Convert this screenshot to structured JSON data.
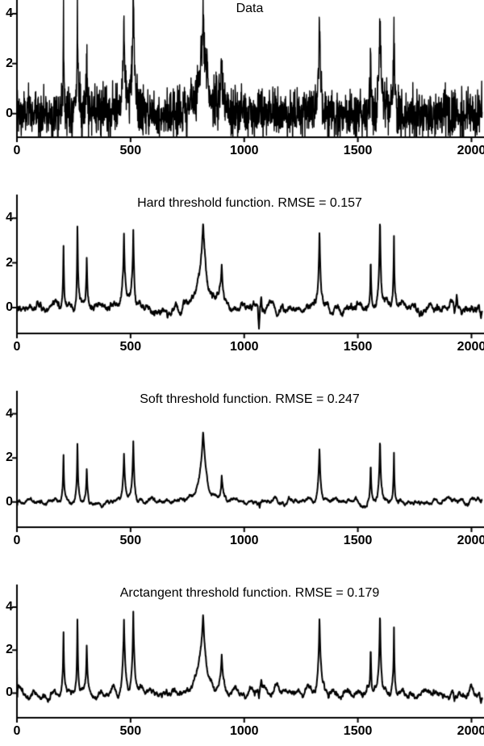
{
  "figure": {
    "background": "#ffffff",
    "line_color": "#000000"
  },
  "chart_data": {
    "type": "line",
    "description": "Four stacked plots comparing wavelet denoising threshold functions on a noisy bumps signal",
    "n_samples": 2048,
    "x_ticks": [
      0,
      500,
      1000,
      1500,
      2000
    ],
    "y_ticks": [
      0,
      2,
      4
    ],
    "grid": false,
    "legend": false,
    "signal_model": "bumps",
    "bumps": {
      "positions": [
        0.1,
        0.13,
        0.15,
        0.23,
        0.25,
        0.4,
        0.44,
        0.65,
        0.76,
        0.78,
        0.81
      ],
      "heights": [
        4,
        5,
        3,
        4,
        5,
        4.2,
        2.1,
        4.3,
        3.1,
        5.1,
        4.2
      ],
      "widths": [
        0.005,
        0.005,
        0.006,
        0.01,
        0.01,
        0.03,
        0.01,
        0.01,
        0.005,
        0.008,
        0.005
      ]
    },
    "panels": [
      {
        "title": "Data",
        "ylim": [
          -0.95,
          4.55
        ],
        "noise_sigma": 0.5,
        "residual": 0,
        "narrow_scale": 1.0,
        "broad_scale": 1.0,
        "artifacts": []
      },
      {
        "title": "Hard threshold function. RMSE = 0.157",
        "rmse": 0.157,
        "ylim": [
          -1.15,
          5.05
        ],
        "noise_sigma": 0,
        "residual": 0.17,
        "narrow_scale": 0.78,
        "broad_scale": 0.9,
        "artifacts": [
          {
            "x": 1065,
            "a": -0.95,
            "w": 5
          },
          {
            "x": 1075,
            "a": 0.5,
            "w": 4
          },
          {
            "x": 1925,
            "a": -0.35,
            "w": 5
          },
          {
            "x": 1935,
            "a": 0.3,
            "w": 4
          },
          {
            "x": 2042,
            "a": -0.6,
            "w": 8
          }
        ]
      },
      {
        "title": "Soft threshold function. RMSE = 0.247",
        "rmse": 0.247,
        "ylim": [
          -1.15,
          5.05
        ],
        "noise_sigma": 0,
        "residual": 0.09,
        "narrow_scale": 0.55,
        "broad_scale": 0.76,
        "artifacts": [
          {
            "x": 1068,
            "a": -0.22,
            "w": 4
          },
          {
            "x": 2042,
            "a": -0.25,
            "w": 8
          }
        ]
      },
      {
        "title": "Arctangent threshold function. RMSE = 0.179",
        "rmse": 0.179,
        "ylim": [
          -1.15,
          5.05
        ],
        "noise_sigma": 0,
        "residual": 0.14,
        "narrow_scale": 0.76,
        "broad_scale": 0.88,
        "artifacts": [
          {
            "x": 1065,
            "a": -0.5,
            "w": 5
          },
          {
            "x": 1075,
            "a": 0.3,
            "w": 4
          },
          {
            "x": 1925,
            "a": -0.28,
            "w": 5
          },
          {
            "x": 2042,
            "a": -0.55,
            "w": 8
          }
        ]
      }
    ]
  }
}
